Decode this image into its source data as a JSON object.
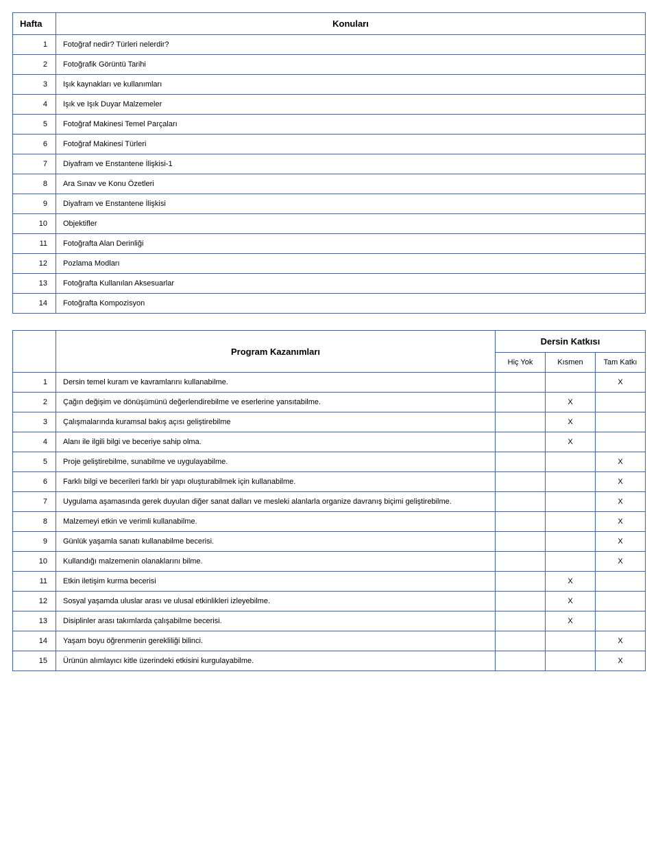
{
  "topicsTable": {
    "headerWeek": "Hafta",
    "headerTopic": "Konuları",
    "rows": [
      {
        "num": "1",
        "text": "Fotoğraf nedir? Türleri nelerdir?"
      },
      {
        "num": "2",
        "text": "Fotoğrafik Görüntü Tarihi"
      },
      {
        "num": "3",
        "text": "Işık kaynakları ve kullanımları"
      },
      {
        "num": "4",
        "text": "Işık ve Işık Duyar Malzemeler"
      },
      {
        "num": "5",
        "text": "Fotoğraf Makinesi Temel Parçaları"
      },
      {
        "num": "6",
        "text": "Fotoğraf Makinesi Türleri"
      },
      {
        "num": "7",
        "text": "Diyafram ve Enstantene İlişkisi-1"
      },
      {
        "num": "8",
        "text": "Ara Sınav ve Konu Özetleri"
      },
      {
        "num": "9",
        "text": "Diyafram ve Enstantene İlişkisi"
      },
      {
        "num": "10",
        "text": "Objektifler"
      },
      {
        "num": "11",
        "text": "Fotoğrafta Alan Derinliği"
      },
      {
        "num": "12",
        "text": "Pozlama Modları"
      },
      {
        "num": "13",
        "text": "Fotoğrafta Kullanılan Aksesuarlar"
      },
      {
        "num": "14",
        "text": "Fotoğrafta Kompozisyon"
      }
    ]
  },
  "outcomesTable": {
    "title": "Program Kazanımları",
    "contribHeader": "Dersin Katkısı",
    "colNone": "Hiç Yok",
    "colPartial": "Kısmen",
    "colFull": "Tam Katkı",
    "mark": "X",
    "rows": [
      {
        "num": "1",
        "text": "Dersin temel kuram ve kavramlarını kullanabilme.",
        "none": false,
        "partial": false,
        "full": true
      },
      {
        "num": "2",
        "text": "Çağın değişim ve dönüşümünü değerlendirebilme ve eserlerine yansıtabilme.",
        "none": false,
        "partial": true,
        "full": false
      },
      {
        "num": "3",
        "text": "Çalışmalarında kuramsal bakış açısı geliştirebilme",
        "none": false,
        "partial": true,
        "full": false
      },
      {
        "num": "4",
        "text": "Alanı ile ilgili  bilgi ve beceriye sahip olma.",
        "none": false,
        "partial": true,
        "full": false
      },
      {
        "num": "5",
        "text": "Proje geliştirebilme, sunabilme ve uygulayabilme.",
        "none": false,
        "partial": false,
        "full": true
      },
      {
        "num": "6",
        "text": "Farklı bilgi ve becerileri farklı bir yapı oluşturabilmek için kullanabilme.",
        "none": false,
        "partial": false,
        "full": true
      },
      {
        "num": "7",
        "text": "Uygulama aşamasında gerek duyulan diğer sanat dalları ve mesleki alanlarla organize davranış biçimi geliştirebilme.",
        "none": false,
        "partial": false,
        "full": true
      },
      {
        "num": "8",
        "text": "Malzemeyi etkin ve verimli kullanabilme.",
        "none": false,
        "partial": false,
        "full": true
      },
      {
        "num": "9",
        "text": "Günlük yaşamla sanatı kullanabilme becerisi.",
        "none": false,
        "partial": false,
        "full": true
      },
      {
        "num": "10",
        "text": "Kullandığı malzemenin olanaklarını bilme.",
        "none": false,
        "partial": false,
        "full": true
      },
      {
        "num": "11",
        "text": "Etkin iletişim kurma becerisi",
        "none": false,
        "partial": true,
        "full": false
      },
      {
        "num": "12",
        "text": "Sosyal yaşamda uluslar arası ve ulusal etkinlikleri  izleyebilme.",
        "none": false,
        "partial": true,
        "full": false
      },
      {
        "num": "13",
        "text": "Disiplinler arası takımlarda çalışabilme becerisi.",
        "none": false,
        "partial": true,
        "full": false
      },
      {
        "num": "14",
        "text": "Yaşam boyu öğrenmenin gerekliliği bilinci.",
        "none": false,
        "partial": false,
        "full": true
      },
      {
        "num": "15",
        "text": "Ürünün alımlayıcı kitle üzerindeki etkisini kurgulayabilme.",
        "none": false,
        "partial": false,
        "full": true
      }
    ]
  }
}
